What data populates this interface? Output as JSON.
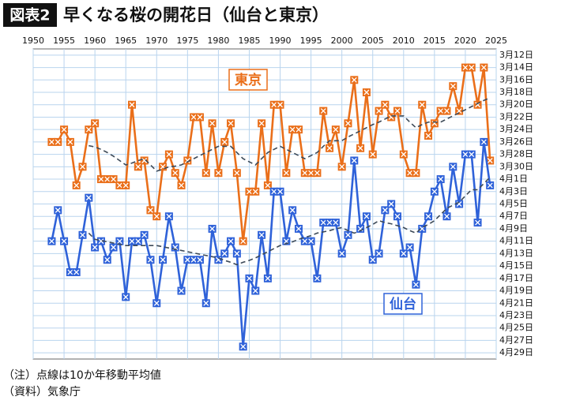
{
  "chart_data": {
    "type": "line",
    "tag": "図表2",
    "title": "早くなる桜の開花日（仙台と東京）",
    "notes": [
      "（注）点線は10か年移動平均値",
      "（資料）気象庁"
    ],
    "x": [
      1953,
      1954,
      1955,
      1956,
      1957,
      1958,
      1959,
      1960,
      1961,
      1962,
      1963,
      1964,
      1965,
      1966,
      1967,
      1968,
      1969,
      1970,
      1971,
      1972,
      1973,
      1974,
      1975,
      1976,
      1977,
      1978,
      1979,
      1980,
      1981,
      1982,
      1983,
      1984,
      1985,
      1986,
      1987,
      1988,
      1989,
      1990,
      1991,
      1992,
      1993,
      1994,
      1995,
      1996,
      1997,
      1998,
      1999,
      2000,
      2001,
      2002,
      2003,
      2004,
      2005,
      2006,
      2007,
      2008,
      2009,
      2010,
      2011,
      2012,
      2013,
      2014,
      2015,
      2016,
      2017,
      2018,
      2019,
      2020,
      2021,
      2022,
      2023,
      2024
    ],
    "xlim": [
      1950,
      2025
    ],
    "xticks": [
      1950,
      1955,
      1960,
      1965,
      1970,
      1975,
      1980,
      1985,
      1990,
      1995,
      2000,
      2005,
      2010,
      2015,
      2020,
      2025
    ],
    "ylim": [
      120,
      70
    ],
    "yticks": [
      {
        "value": 71,
        "label": "3月12日"
      },
      {
        "value": 73,
        "label": "3月14日"
      },
      {
        "value": 75,
        "label": "3月16日"
      },
      {
        "value": 77,
        "label": "3月18日"
      },
      {
        "value": 79,
        "label": "3月20日"
      },
      {
        "value": 81,
        "label": "3月22日"
      },
      {
        "value": 83,
        "label": "3月24日"
      },
      {
        "value": 85,
        "label": "3月26日"
      },
      {
        "value": 87,
        "label": "3月28日"
      },
      {
        "value": 89,
        "label": "3月30日"
      },
      {
        "value": 91,
        "label": "4月1日"
      },
      {
        "value": 93,
        "label": "4月3日"
      },
      {
        "value": 95,
        "label": "4月5日"
      },
      {
        "value": 97,
        "label": "4月7日"
      },
      {
        "value": 99,
        "label": "4月9日"
      },
      {
        "value": 101,
        "label": "4月11日"
      },
      {
        "value": 103,
        "label": "4月13日"
      },
      {
        "value": 105,
        "label": "4月15日"
      },
      {
        "value": 107,
        "label": "4月17日"
      },
      {
        "value": 109,
        "label": "4月19日"
      },
      {
        "value": 111,
        "label": "4月21日"
      },
      {
        "value": 113,
        "label": "4月23日"
      },
      {
        "value": 115,
        "label": "4月25日"
      },
      {
        "value": 117,
        "label": "4月27日"
      },
      {
        "value": 119,
        "label": "4月29日"
      }
    ],
    "grid": true,
    "series": [
      {
        "name": "東京",
        "color": "#ea6f1a",
        "markers": true,
        "values": [
          85,
          85,
          83,
          85,
          92,
          89,
          83,
          82,
          91,
          91,
          91,
          92,
          92,
          79,
          89,
          88,
          96,
          97,
          89,
          87,
          90,
          92,
          88,
          81,
          81,
          90,
          82,
          90,
          85,
          82,
          90,
          101,
          93,
          93,
          82,
          92,
          79,
          79,
          90,
          83,
          83,
          90,
          90,
          90,
          80,
          86,
          83,
          89,
          82,
          75,
          86,
          77,
          87,
          80,
          79,
          81,
          80,
          87,
          90,
          90,
          79,
          84,
          82,
          80,
          80,
          76,
          80,
          73,
          73,
          79,
          73,
          88
        ]
      },
      {
        "name": "仙台",
        "color": "#2f62d9",
        "markers": true,
        "values": [
          101,
          96,
          101,
          106,
          106,
          100,
          94,
          102,
          101,
          104,
          102,
          101,
          110,
          101,
          101,
          100,
          104,
          111,
          104,
          97,
          102,
          109,
          104,
          104,
          104,
          111,
          99,
          104,
          103,
          101,
          103,
          118,
          107,
          109,
          100,
          107,
          93,
          93,
          101,
          96,
          99,
          101,
          101,
          107,
          98,
          98,
          98,
          103,
          100,
          88,
          99,
          97,
          104,
          103,
          96,
          95,
          97,
          103,
          102,
          108,
          99,
          97,
          93,
          91,
          97,
          89,
          95,
          87,
          87,
          98,
          85,
          92
        ]
      },
      {
        "color": "#3d4a58",
        "dashed": true,
        "values": [
          null,
          null,
          null,
          null,
          null,
          null,
          85.6,
          85.8,
          86.2,
          86.7,
          87.3,
          88.0,
          88.7,
          88.4,
          88.0,
          87.7,
          88.7,
          89.7,
          89.4,
          89.0,
          88.9,
          88.7,
          88.2,
          87.7,
          87.2,
          86.7,
          86.2,
          85.7,
          85.7,
          85.7,
          86.7,
          87.7,
          88.2,
          88.7,
          87.7,
          86.7,
          86.2,
          85.7,
          86.2,
          86.7,
          87.2,
          87.7,
          87.2,
          86.7,
          85.7,
          84.8,
          84.8,
          84.8,
          84.2,
          83.7,
          83.2,
          82.7,
          82.2,
          81.8,
          81.3,
          80.8,
          80.8,
          80.8,
          81.8,
          82.7,
          82.2,
          81.8,
          81.8,
          81.8,
          81.3,
          80.8,
          80.3,
          79.8,
          79.3,
          78.8,
          78.3,
          77.9
        ]
      },
      {
        "color": "#3d4a58",
        "dashed": true,
        "values": [
          null,
          null,
          null,
          null,
          null,
          null,
          99.7,
          100.7,
          100.9,
          101.1,
          101.3,
          101.5,
          101.7,
          101.7,
          101.7,
          101.7,
          101.7,
          101.7,
          101.9,
          102.1,
          102.3,
          102.5,
          102.7,
          102.9,
          103.1,
          103.3,
          103.5,
          103.7,
          104.1,
          104.4,
          104.8,
          104.4,
          104.1,
          103.7,
          103.2,
          102.7,
          102.2,
          101.7,
          101.4,
          101.1,
          100.7,
          100.4,
          100.1,
          99.7,
          99.5,
          99.3,
          99.0,
          98.8,
          99.3,
          99.7,
          99.3,
          98.8,
          98.3,
          97.7,
          98.0,
          98.2,
          98.5,
          98.8,
          99.3,
          99.7,
          98.8,
          98.3,
          97.7,
          96.7,
          95.7,
          95.2,
          94.7,
          93.7,
          92.7,
          92.7,
          91.7,
          90.7
        ]
      }
    ]
  }
}
